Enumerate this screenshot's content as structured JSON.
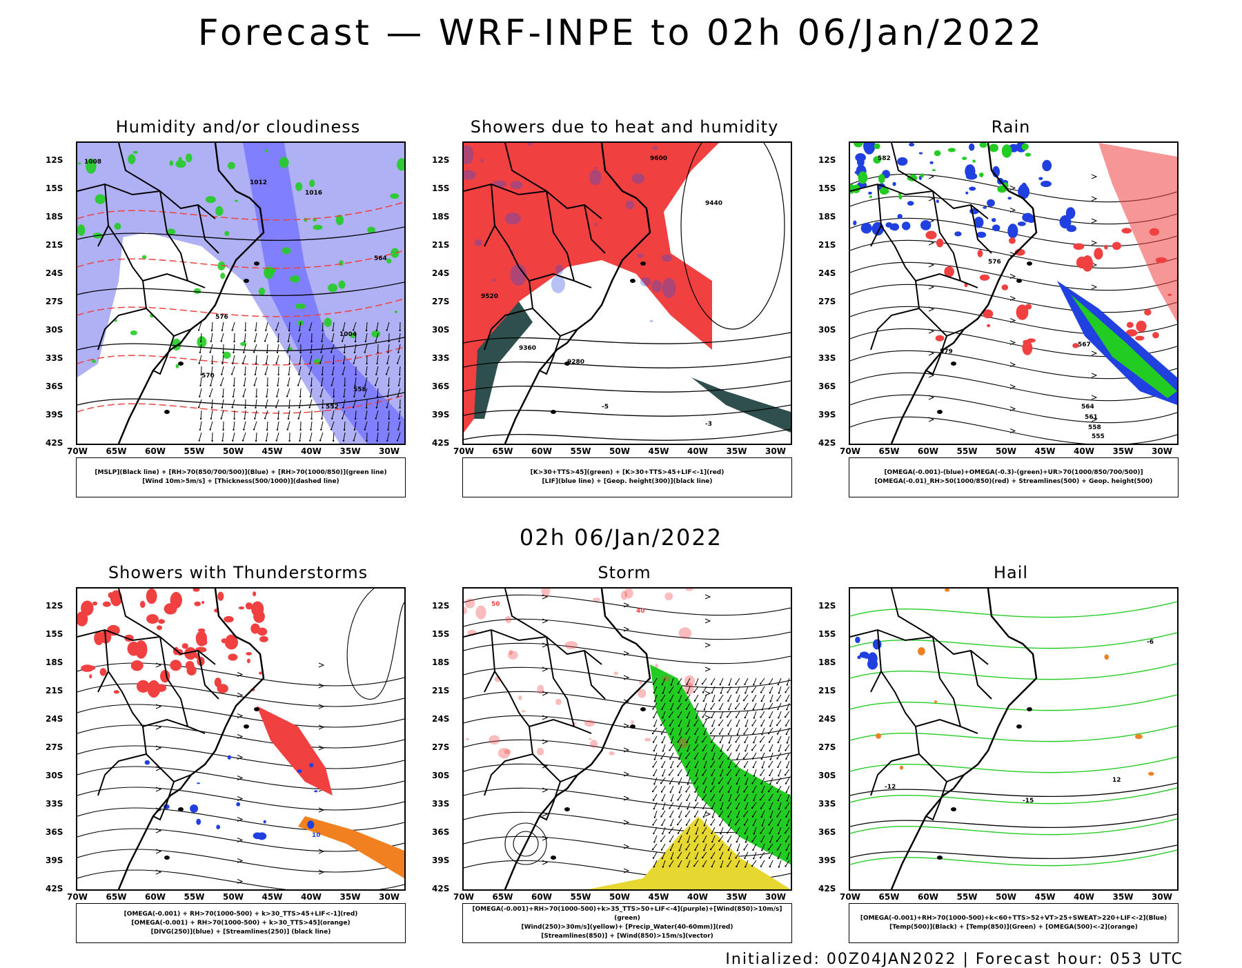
{
  "title": "Forecast — WRF-INPE to 02h 06/Jan/2022",
  "mid_time": "02h 06/Jan/2022",
  "footer": "Initialized: 00Z04JAN2022 | Forecast hour: 053 UTC",
  "axes": {
    "lat_labels": [
      "12S",
      "15S",
      "18S",
      "21S",
      "24S",
      "27S",
      "30S",
      "33S",
      "36S",
      "39S",
      "42S"
    ],
    "lon_labels": [
      "70W",
      "65W",
      "60W",
      "55W",
      "50W",
      "45W",
      "40W",
      "35W",
      "30W"
    ]
  },
  "panels": [
    {
      "id": "humidity",
      "title": "Humidity and/or cloudiness",
      "legend": [
        "[MSLP](Black line) + [RH>70(850/700/500)](Blue) + [RH>70(1000/850)](green line)",
        "[Wind 10m>5m/s] + [Thickness(500/1000)](dashed line)"
      ],
      "contour_labels": [
        "1008",
        "1012",
        "1016",
        "1004",
        "576",
        "570",
        "564",
        "558",
        "552"
      ]
    },
    {
      "id": "showers",
      "title": "Showers due to heat and humidity",
      "legend": [
        "[K>30+TTS>45](green) + [K>30+TTS>45+LIF<-1](red)",
        "[LIF](blue line) + [Geop. height(300)](black line)"
      ],
      "contour_labels": [
        "9600",
        "9520",
        "9440",
        "9360",
        "9280",
        "-3",
        "-5"
      ]
    },
    {
      "id": "rain",
      "title": "Rain",
      "legend": [
        "[OMEGA(-0.001)-(blue)+OMEGA(-0.3)-(green)+UR>70(1000/850/700/500)]",
        "[OMEGA(-0.01)_RH>50(1000/850)(red) + Streamlines(500) + Geop. height(500)"
      ],
      "contour_labels": [
        "582",
        "579",
        "576",
        "567",
        "564",
        "561",
        "558",
        "555"
      ]
    },
    {
      "id": "thunder",
      "title": "Showers with Thunderstorms",
      "legend": [
        "[OMEGA(-0.001) + RH>70(1000-500) + k>30_TTS>45+LIF<-1](red)",
        "[OMEGA(-0.001) + RH>70(1000-500) + k>30_TTS>45](orange)",
        "[DIVG(250)](blue) + [Streamlines(250)] (black line)"
      ],
      "contour_labels": [
        "10"
      ]
    },
    {
      "id": "storm",
      "title": "Storm",
      "legend": [
        "[OMEGA(-0.001)+RH>70(1000-500)+k>35_TTS>50+LIF<-4](purple)+[Wind(850)>10m/s](green)",
        "[Wind(250)>30m/s](yellow)+ [Precip_Water(40-60mm)](red)",
        "[Streamlines(850)] + [Wind(850)>15m/s](vector)"
      ],
      "contour_labels": [
        "50",
        "40"
      ]
    },
    {
      "id": "hail",
      "title": "Hail",
      "legend": [
        "[OMEGA(-0.001)+RH>70(1000-500)+k<60+TTS>52+VT>25+SWEAT>220+LIF<-2](Blue)",
        "[Temp(500)](Black) + [Temp(850)](Green) + [OMEGA(500)<-2](orange)"
      ],
      "contour_labels": [
        "-12",
        "-15",
        "-6",
        "12"
      ]
    }
  ],
  "colors": {
    "blue_fill": "#8080ff",
    "light_blue": "#b0b0f5",
    "green": "#22cc22",
    "red": "#f04040",
    "dark_teal": "#2f4f4f",
    "orange": "#f08020",
    "yellow": "#e6d830",
    "purple": "#9020b0"
  }
}
